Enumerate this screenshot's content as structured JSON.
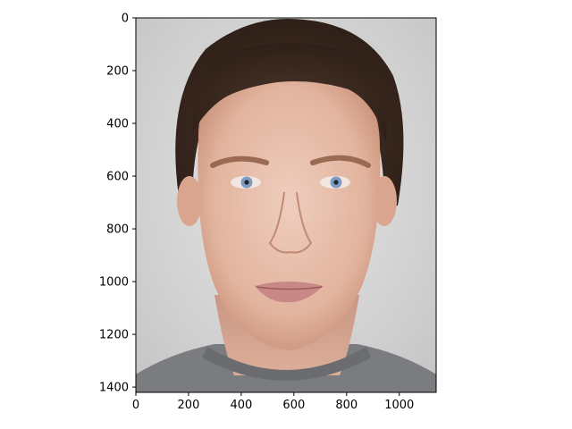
{
  "figure": {
    "background": "#ffffff",
    "axes_color": "#000000"
  },
  "image": {
    "description_icon": "face-portrait-photo",
    "width_units": 1140,
    "height_units": 1420,
    "background_color": "#d2d2d2",
    "skin_color": "#e4b9a4",
    "hair_color": "#3b2a21",
    "shirt_color": "#7a7c80",
    "eye_iris_color": "#7f9bc0",
    "lip_color": "#c98888"
  },
  "x_axis": {
    "range": [
      0,
      1140
    ],
    "ticks": [
      {
        "value": 0,
        "label": "0"
      },
      {
        "value": 200,
        "label": "200"
      },
      {
        "value": 400,
        "label": "400"
      },
      {
        "value": 600,
        "label": "600"
      },
      {
        "value": 800,
        "label": "800"
      },
      {
        "value": 1000,
        "label": "1000"
      }
    ]
  },
  "y_axis": {
    "range": [
      0,
      1420
    ],
    "inverted": true,
    "ticks": [
      {
        "value": 0,
        "label": "0"
      },
      {
        "value": 200,
        "label": "200"
      },
      {
        "value": 400,
        "label": "400"
      },
      {
        "value": 600,
        "label": "600"
      },
      {
        "value": 800,
        "label": "800"
      },
      {
        "value": 1000,
        "label": "1000"
      },
      {
        "value": 1200,
        "label": "1200"
      },
      {
        "value": 1400,
        "label": "1400"
      }
    ]
  }
}
